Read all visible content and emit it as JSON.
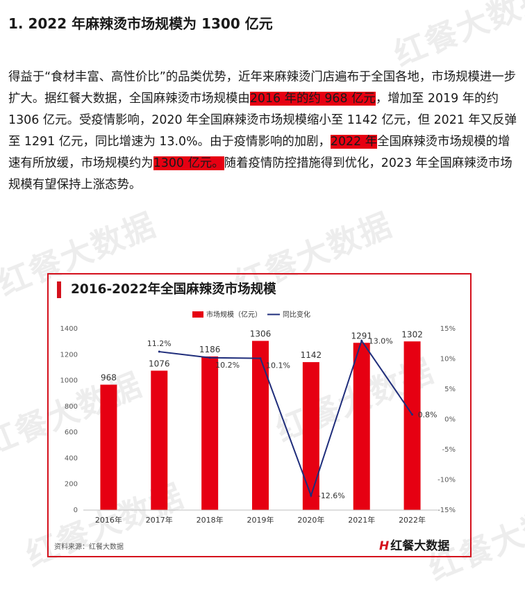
{
  "heading": "1. 2022 年麻辣烫市场规模为 1300 亿元",
  "paragraph": {
    "p1": "得益于“食材丰富、高性价比”的品类优势，近年来麻辣烫门店遍布于全国各地，市场规模进一步扩大。据红餐大数据，全国麻辣烫市场规模由",
    "h1": "2016 年的约 968 亿元",
    "p2": "，增加至 2019 年的约 1306 亿元。受疫情影响，2020 年全国麻辣烫市场规模缩小至 1142 亿元，但 2021 年又反弹至 1291 亿元，同比增速为 13.0%。由于疫情影响的加剧，",
    "h2": "2022 年",
    "p3": "全国麻辣烫市场规模的增速有所放缓，市场规模约为",
    "h3": "1300 亿元。",
    "p4": "随着疫情防控措施得到优化，2023 年全国麻辣烫市场规模有望保持上涨态势。"
  },
  "watermark_text": "红餐大数据",
  "source": "资料来源：红餐大数据",
  "brand": {
    "mark": "H",
    "text": "红餐大数据"
  },
  "colors": {
    "bar": "#e60012",
    "line": "#1f2d7b",
    "accent": "#d4101c"
  },
  "chart_data": {
    "type": "bar+line",
    "title": "2016-2022年全国麻辣烫市场规模",
    "categories": [
      "2016年",
      "2017年",
      "2018年",
      "2019年",
      "2020年",
      "2021年",
      "2022年"
    ],
    "series": [
      {
        "name": "市场规模（亿元）",
        "type": "bar",
        "axis": "left",
        "values": [
          968,
          1076,
          1186,
          1306,
          1142,
          1291,
          1302
        ],
        "labels": [
          "968",
          "1076",
          "1186",
          "1306",
          "1142",
          "1291",
          "1302"
        ]
      },
      {
        "name": "同比变化",
        "type": "line",
        "axis": "right",
        "values": [
          null,
          11.2,
          10.2,
          10.1,
          -12.6,
          13.0,
          0.8
        ],
        "labels": [
          "",
          "11.2%",
          "10.2%",
          "10.1%",
          "-12.6%",
          "13.0%",
          "0.8%"
        ]
      }
    ],
    "y_left": {
      "min": 0,
      "max": 1400,
      "ticks": [
        "0",
        "200",
        "400",
        "600",
        "800",
        "1000",
        "1200",
        "1400"
      ]
    },
    "y_right": {
      "min": -15,
      "max": 15,
      "ticks": [
        "-15%",
        "-10%",
        "-5%",
        "0%",
        "5%",
        "10%",
        "15%"
      ]
    },
    "legend_position": "top-center",
    "grid": false
  }
}
